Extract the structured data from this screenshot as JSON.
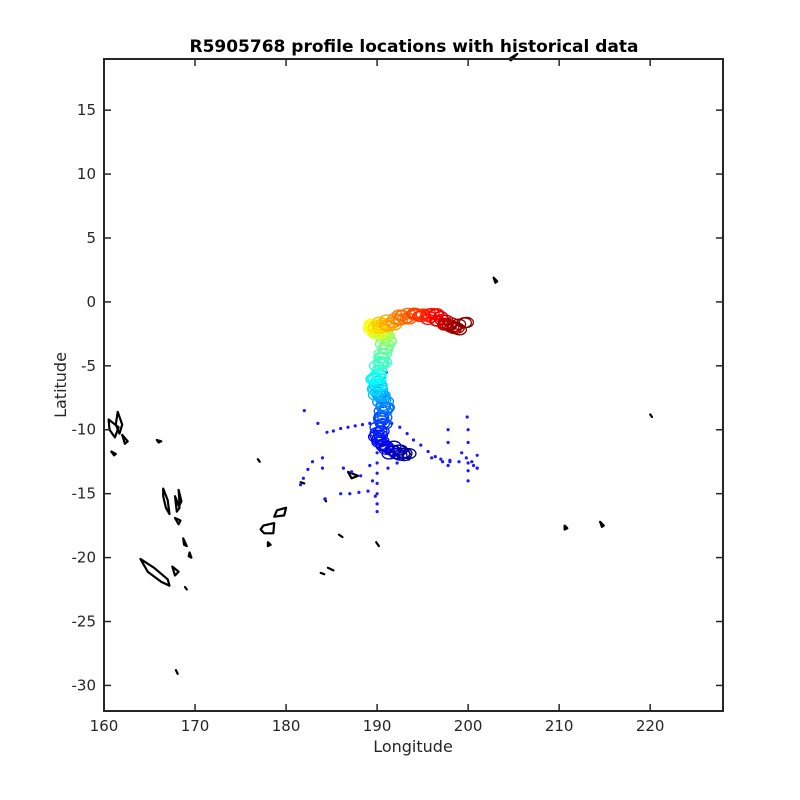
{
  "chart_data": {
    "type": "scatter",
    "title": "R5905768 profile locations with historical data",
    "xlabel": "Longitude",
    "ylabel": "Latitude",
    "xlim": [
      160,
      228
    ],
    "ylim": [
      -32,
      19
    ],
    "xticks": [
      160,
      170,
      180,
      190,
      200,
      210,
      220
    ],
    "yticks": [
      15,
      10,
      5,
      0,
      -5,
      -10,
      -15,
      -20,
      -25,
      -30
    ],
    "grid": false,
    "colormap": "jet",
    "historical_color": "#1a1aff",
    "coastline_color": "#000000",
    "historical_points": [
      [
        182,
        -8.5
      ],
      [
        183.5,
        -9.5
      ],
      [
        184.5,
        -10.2
      ],
      [
        185.2,
        -10.1
      ],
      [
        186,
        -9.9
      ],
      [
        186.8,
        -9.8
      ],
      [
        187.6,
        -9.7
      ],
      [
        188.4,
        -9.6
      ],
      [
        189.2,
        -9.5
      ],
      [
        190,
        -9.5
      ],
      [
        190.8,
        -9.5
      ],
      [
        191.6,
        -9.5
      ],
      [
        192.5,
        -9.8
      ],
      [
        193.3,
        -10.3
      ],
      [
        194,
        -10.8
      ],
      [
        194.8,
        -11.2
      ],
      [
        195.6,
        -11.7
      ],
      [
        196.4,
        -12.1
      ],
      [
        197.2,
        -12.5
      ],
      [
        198,
        -12.5
      ],
      [
        199,
        -12.5
      ],
      [
        200,
        -12.6
      ],
      [
        200.6,
        -12.8
      ],
      [
        201,
        -13
      ],
      [
        199.3,
        -11.8
      ],
      [
        199.8,
        -12.2
      ],
      [
        200.4,
        -12.5
      ],
      [
        196,
        -12.2
      ],
      [
        197,
        -12.3
      ],
      [
        198,
        -12.4
      ],
      [
        182.9,
        -12.5
      ],
      [
        182.4,
        -13.1
      ],
      [
        181.9,
        -13.8
      ],
      [
        181.6,
        -14.3
      ],
      [
        184,
        -12.2
      ],
      [
        184,
        -13
      ],
      [
        184.3,
        -15.4
      ],
      [
        186,
        -15
      ],
      [
        187,
        -15
      ],
      [
        188,
        -14.9
      ],
      [
        189,
        -14.8
      ],
      [
        190,
        -11.8
      ],
      [
        190,
        -12.6
      ],
      [
        190,
        -13.4
      ],
      [
        190,
        -14.2
      ],
      [
        190,
        -15
      ],
      [
        190,
        -15.8
      ],
      [
        190,
        -16.4
      ],
      [
        189.5,
        -14
      ],
      [
        189.8,
        -15.2
      ],
      [
        191.2,
        -13
      ],
      [
        192.2,
        -12.6
      ],
      [
        193.5,
        -12.3
      ],
      [
        186.3,
        -13
      ],
      [
        187.2,
        -13.3
      ],
      [
        188.2,
        -13.6
      ],
      [
        189.2,
        -12.8
      ],
      [
        197.8,
        -10
      ],
      [
        197.8,
        -11
      ],
      [
        197.8,
        -12.8
      ],
      [
        199.9,
        -9
      ],
      [
        200,
        -10
      ],
      [
        200,
        -11
      ],
      [
        200,
        -13.2
      ],
      [
        200,
        -14
      ],
      [
        201,
        -12
      ],
      [
        201,
        -13
      ],
      [
        190.8,
        -6
      ],
      [
        191,
        -5.5
      ],
      [
        191.2,
        -4.8
      ],
      [
        190.5,
        -7
      ],
      [
        190.6,
        -8.2
      ]
    ],
    "float_track_note": "",
    "coast_rings": [
      [
        [
          160.5,
          -9.2
        ],
        [
          161.6,
          -9.8
        ],
        [
          161.2,
          -10.6
        ],
        [
          160.6,
          -10
        ]
      ],
      [
        [
          161.5,
          -8.6
        ],
        [
          162,
          -9.6
        ],
        [
          161.7,
          -10.3
        ],
        [
          161.3,
          -9.6
        ]
      ],
      [
        [
          162,
          -10.4
        ],
        [
          162.6,
          -10.9
        ],
        [
          162.3,
          -11.1
        ]
      ],
      [
        [
          160.8,
          -11.7
        ],
        [
          161.3,
          -11.9
        ],
        [
          161.1,
          -12
        ]
      ],
      [
        [
          165.8,
          -10.8
        ],
        [
          166.3,
          -10.9
        ],
        [
          166,
          -11
        ]
      ],
      [
        [
          166.5,
          -14.6
        ],
        [
          167,
          -15.5
        ],
        [
          167.2,
          -16.6
        ],
        [
          166.8,
          -16.1
        ],
        [
          166.5,
          -15.2
        ]
      ],
      [
        [
          167.8,
          -15.2
        ],
        [
          168.3,
          -16.1
        ],
        [
          168,
          -16.4
        ]
      ],
      [
        [
          168.2,
          -14.7
        ],
        [
          168.5,
          -15.6
        ],
        [
          168.3,
          -15.9
        ]
      ],
      [
        [
          167.8,
          -16.9
        ],
        [
          168.4,
          -17.1
        ],
        [
          168.2,
          -17.4
        ]
      ],
      [
        [
          168.7,
          -18.5
        ],
        [
          169.1,
          -19.1
        ],
        [
          168.8,
          -19
        ]
      ],
      [
        [
          169.4,
          -19.6
        ],
        [
          169.6,
          -20.0
        ],
        [
          169.3,
          -19.9
        ]
      ],
      [
        [
          164.0,
          -20.1
        ],
        [
          165.5,
          -20.8
        ],
        [
          167.0,
          -21.7
        ],
        [
          167.2,
          -22.2
        ],
        [
          166.3,
          -21.9
        ],
        [
          164.8,
          -21.1
        ]
      ],
      [
        [
          167.5,
          -20.7
        ],
        [
          168.2,
          -21.1
        ],
        [
          167.8,
          -21.4
        ]
      ],
      [
        [
          177.5,
          -17.5
        ],
        [
          178.7,
          -17.3
        ],
        [
          178.6,
          -18.1
        ],
        [
          177.6,
          -18.1
        ],
        [
          177.2,
          -17.8
        ]
      ],
      [
        [
          179,
          -16.3
        ],
        [
          180,
          -16.1
        ],
        [
          179.8,
          -16.7
        ],
        [
          178.7,
          -16.8
        ]
      ],
      [
        [
          178,
          -18.8
        ],
        [
          178.3,
          -19
        ],
        [
          178,
          -19.1
        ]
      ],
      [
        [
          176.9,
          -12.3
        ],
        [
          177.1,
          -12.5
        ]
      ],
      [
        [
          181.6,
          -14.1
        ],
        [
          182,
          -14.2
        ]
      ],
      [
        [
          183.8,
          -21.2
        ],
        [
          184.2,
          -21.3
        ]
      ],
      [
        [
          184.6,
          -20.8
        ],
        [
          185.2,
          -21
        ]
      ],
      [
        [
          185.8,
          -18.2
        ],
        [
          186.2,
          -18.4
        ]
      ],
      [
        [
          189.9,
          -18.8
        ],
        [
          190.2,
          -19.1
        ]
      ],
      [
        [
          186.8,
          -13.3
        ],
        [
          187.9,
          -13.6
        ],
        [
          187.2,
          -13.8
        ]
      ],
      [
        [
          184.2,
          -15.4
        ],
        [
          184.4,
          -15.6
        ]
      ],
      [
        [
          202.8,
          1.9
        ],
        [
          203.2,
          1.6
        ],
        [
          203,
          1.5
        ]
      ],
      [
        [
          204.5,
          19
        ],
        [
          205.4,
          19.4
        ],
        [
          204.7,
          18.9
        ]
      ],
      [
        [
          220,
          -8.8
        ],
        [
          220.2,
          -9
        ]
      ],
      [
        [
          210.6,
          -17.5
        ],
        [
          210.9,
          -17.7
        ],
        [
          210.6,
          -17.8
        ]
      ],
      [
        [
          214.5,
          -17.2
        ],
        [
          214.9,
          -17.5
        ],
        [
          214.7,
          -17.6
        ]
      ],
      [
        [
          168.9,
          -22.3
        ],
        [
          169.1,
          -22.5
        ]
      ],
      [
        [
          167.9,
          -28.8
        ],
        [
          168.1,
          -29.1
        ]
      ]
    ]
  }
}
